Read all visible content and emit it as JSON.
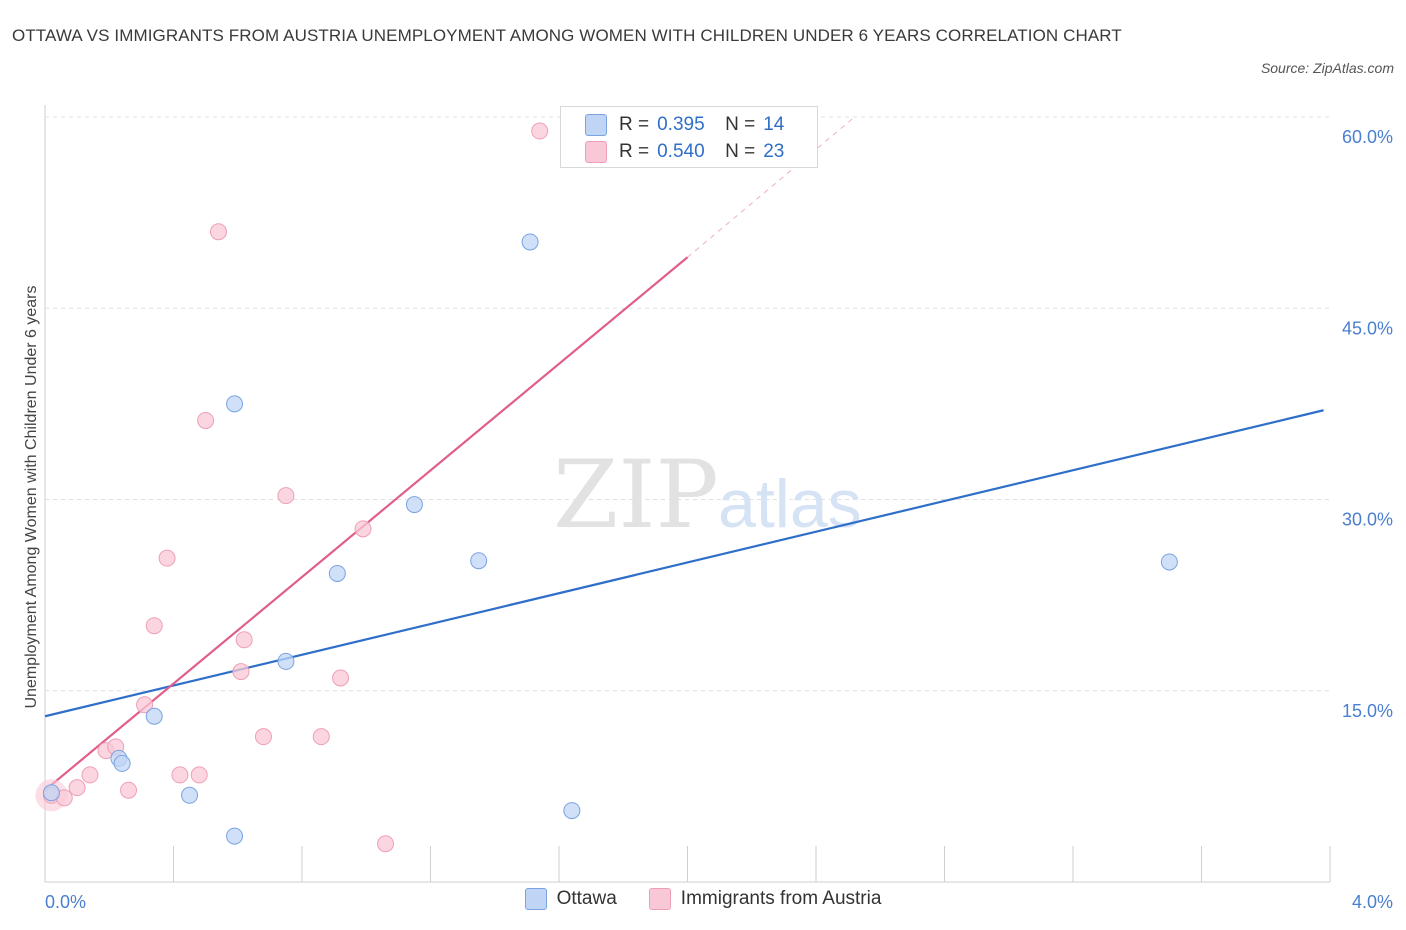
{
  "title": "OTTAWA VS IMMIGRANTS FROM AUSTRIA UNEMPLOYMENT AMONG WOMEN WITH CHILDREN UNDER 6 YEARS CORRELATION CHART",
  "source": "Source: ZipAtlas.com",
  "watermark": {
    "zip": "ZIP",
    "atlas": "atlas"
  },
  "legend_top": [
    {
      "r_label": "R =",
      "r_value": "0.395",
      "n_label": "N =",
      "n_value": "14"
    },
    {
      "r_label": "R =",
      "r_value": "0.540",
      "n_label": "N =",
      "n_value": "23"
    }
  ],
  "legend_bottom": [
    {
      "label": "Ottawa"
    },
    {
      "label": "Immigrants from Austria"
    }
  ],
  "colors": {
    "ottawa_fill": "#c0d5f5",
    "ottawa_stroke": "#7aa3e0",
    "ottawa_line": "#2f6fc9",
    "austria_fill": "#f9c8d6",
    "austria_stroke": "#ee9fb6",
    "austria_line": "#e05f8a",
    "grid": "#e0e0e0",
    "tick_label": "#4a7fd0"
  },
  "chart_data": {
    "type": "scatter",
    "title": "OTTAWA VS IMMIGRANTS FROM AUSTRIA UNEMPLOYMENT AMONG WOMEN WITH CHILDREN UNDER 6 YEARS CORRELATION CHART",
    "xlabel": "",
    "ylabel": "Unemployment Among Women with Children Under 6 years",
    "xlim": [
      0,
      4.0
    ],
    "ylim": [
      0,
      60
    ],
    "x_tick_labels": [
      "0.0%",
      "4.0%"
    ],
    "y_ticks": [
      15,
      30,
      45,
      60
    ],
    "y_tick_labels": [
      "15.0%",
      "30.0%",
      "45.0%",
      "60.0%"
    ],
    "series": [
      {
        "name": "Ottawa",
        "points": [
          [
            0.02,
            7.0
          ],
          [
            0.23,
            9.7
          ],
          [
            0.24,
            9.3
          ],
          [
            0.34,
            13.0
          ],
          [
            0.45,
            6.8
          ],
          [
            0.59,
            37.5
          ],
          [
            0.59,
            3.6
          ],
          [
            0.75,
            17.3
          ],
          [
            0.91,
            24.2
          ],
          [
            1.15,
            29.6
          ],
          [
            1.35,
            25.2
          ],
          [
            1.51,
            50.2
          ],
          [
            1.64,
            5.6
          ],
          [
            3.5,
            25.1
          ]
        ],
        "trend": {
          "x": [
            0.0,
            3.98
          ],
          "y": [
            13.0,
            37.0
          ]
        }
      },
      {
        "name": "Immigrants from Austria",
        "points": [
          [
            0.02,
            6.8
          ],
          [
            0.06,
            6.6
          ],
          [
            0.1,
            7.4
          ],
          [
            0.14,
            8.4
          ],
          [
            0.19,
            10.3
          ],
          [
            0.22,
            10.6
          ],
          [
            0.26,
            7.2
          ],
          [
            0.31,
            13.9
          ],
          [
            0.34,
            20.1
          ],
          [
            0.38,
            25.4
          ],
          [
            0.42,
            8.4
          ],
          [
            0.48,
            8.4
          ],
          [
            0.5,
            36.2
          ],
          [
            0.54,
            51.0
          ],
          [
            0.61,
            16.5
          ],
          [
            0.62,
            19.0
          ],
          [
            0.68,
            11.4
          ],
          [
            0.75,
            30.3
          ],
          [
            0.86,
            11.4
          ],
          [
            0.92,
            16.0
          ],
          [
            0.99,
            27.7
          ],
          [
            1.06,
            3.0
          ],
          [
            1.54,
            58.9
          ]
        ],
        "trend": {
          "x": [
            0.0,
            2.0
          ],
          "y": [
            7.2,
            49.0
          ]
        },
        "trend_extension": {
          "x": [
            2.0,
            2.52
          ],
          "y": [
            49.0,
            60.0
          ]
        }
      }
    ]
  }
}
